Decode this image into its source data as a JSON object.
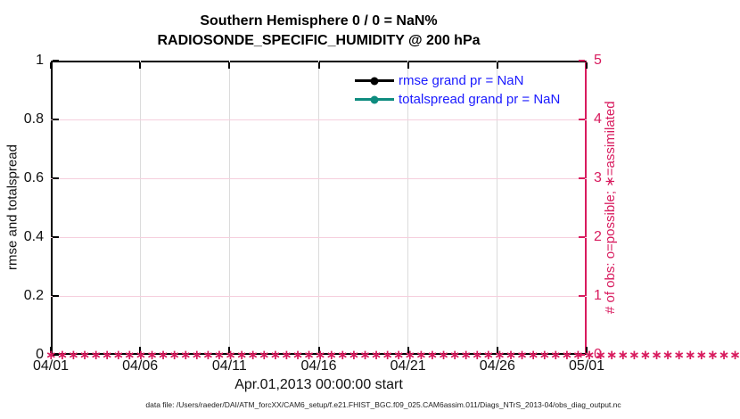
{
  "chart_data": {
    "type": "line",
    "title": "Southern Hemisphere 0 / 0 = NaN%",
    "subtitle": "RADIOSONDE_SPECIFIC_HUMIDITY @ 200 hPa",
    "x": {
      "label": "Apr.01,2013 00:00:00 start",
      "tick_labels": [
        "04/01",
        "04/06",
        "04/11",
        "04/16",
        "04/21",
        "04/26",
        "05/01"
      ]
    },
    "y_left": {
      "label": "rmse and totalspread",
      "ticks": [
        0,
        0.2,
        0.4,
        0.6,
        0.8,
        1
      ],
      "range": [
        0,
        1
      ],
      "color": "#111111"
    },
    "y_right": {
      "label": "# of obs: o=possible; ∗=assimilated",
      "ticks": [
        0,
        1,
        2,
        3,
        4,
        5
      ],
      "range": [
        0,
        5
      ],
      "color": "#D81B5E"
    },
    "series": [
      {
        "name": "rmse grand pr = NaN",
        "color": "#000000",
        "marker": "circle",
        "values": []
      },
      {
        "name": "totalspread grand pr = NaN",
        "color": "#0E8C7F",
        "marker": "circle",
        "values": []
      }
    ],
    "legend": {
      "position": "top-inside",
      "text_color": "#1A1AFF"
    },
    "obs_markers": {
      "symbol": "∗",
      "value": 0,
      "count": 121,
      "color": "#D81B5E"
    },
    "grid": {
      "vertical_color": "#DBDBDB",
      "horizontal_color": "#F6CFDD"
    }
  },
  "footer": "data file: /Users/raeder/DAI/ATM_forcXX/CAM6_setup/f.e21.FHIST_BGC.f09_025.CAM6assim.011/Diags_NTrS_2013-04/obs_diag_output.nc"
}
